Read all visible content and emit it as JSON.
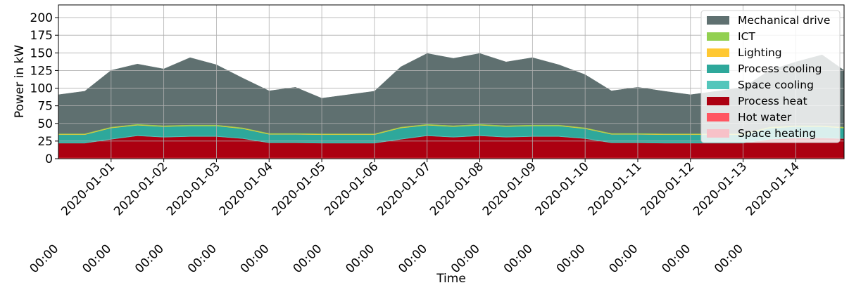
{
  "chart_data": {
    "type": "area",
    "stacked": true,
    "xlabel": "Time",
    "ylabel": "Power in kW",
    "xlim": [
      "2019-12-31T00:00",
      "2020-01-14T22:00"
    ],
    "ylim": [
      0,
      218
    ],
    "grid": true,
    "legend_position": "top-right",
    "y_ticks": [
      0,
      25,
      50,
      75,
      100,
      125,
      150,
      175,
      200
    ],
    "x_ticks": [
      {
        "date": "2020-01-01",
        "time": "00:00"
      },
      {
        "date": "2020-01-02",
        "time": "00:00"
      },
      {
        "date": "2020-01-03",
        "time": "00:00"
      },
      {
        "date": "2020-01-04",
        "time": "00:00"
      },
      {
        "date": "2020-01-05",
        "time": "00:00"
      },
      {
        "date": "2020-01-06",
        "time": "00:00"
      },
      {
        "date": "2020-01-07",
        "time": "00:00"
      },
      {
        "date": "2020-01-08",
        "time": "00:00"
      },
      {
        "date": "2020-01-09",
        "time": "00:00"
      },
      {
        "date": "2020-01-10",
        "time": "00:00"
      },
      {
        "date": "2020-01-11",
        "time": "00:00"
      },
      {
        "date": "2020-01-12",
        "time": "00:00"
      },
      {
        "date": "2020-01-13",
        "time": "00:00"
      },
      {
        "date": "2020-01-14",
        "time": "00:00"
      }
    ],
    "x": [
      "2019-12-31T00:00",
      "2019-12-31T12:00",
      "2020-01-01T00:00",
      "2020-01-01T12:00",
      "2020-01-02T00:00",
      "2020-01-02T12:00",
      "2020-01-03T00:00",
      "2020-01-03T12:00",
      "2020-01-04T00:00",
      "2020-01-04T12:00",
      "2020-01-05T00:00",
      "2020-01-05T12:00",
      "2020-01-06T00:00",
      "2020-01-06T12:00",
      "2020-01-07T00:00",
      "2020-01-07T12:00",
      "2020-01-08T00:00",
      "2020-01-08T12:00",
      "2020-01-09T00:00",
      "2020-01-09T12:00",
      "2020-01-10T00:00",
      "2020-01-10T12:00",
      "2020-01-11T00:00",
      "2020-01-11T12:00",
      "2020-01-12T00:00",
      "2020-01-12T12:00",
      "2020-01-13T00:00",
      "2020-01-13T12:00",
      "2020-01-14T00:00",
      "2020-01-14T12:00",
      "2020-01-14T22:00"
    ],
    "series": [
      {
        "name": "Space heating",
        "color": "#f7c1c8",
        "values": [
          0.5,
          0.5,
          0.5,
          0.5,
          0.5,
          0.5,
          0.5,
          0.5,
          0.5,
          0.5,
          0.5,
          0.5,
          0.5,
          0.5,
          0.5,
          0.5,
          0.5,
          0.5,
          0.5,
          0.5,
          0.5,
          0.5,
          0.5,
          0.5,
          0.5,
          0.5,
          0.5,
          0.5,
          0.5,
          0.5,
          0.5
        ]
      },
      {
        "name": "Hot water",
        "color": "#ff5561",
        "values": [
          1,
          1,
          1,
          1,
          1,
          1,
          1,
          1,
          1,
          1,
          1,
          1,
          1,
          1,
          1,
          1,
          1,
          1,
          1,
          1,
          1,
          1,
          1,
          1,
          1,
          1,
          1,
          1,
          1,
          1,
          1
        ]
      },
      {
        "name": "Process heat",
        "color": "#ac0011",
        "values": [
          20.5,
          20.5,
          26,
          31,
          29,
          30,
          30,
          27,
          21,
          21,
          20.5,
          20.5,
          20.5,
          26,
          31,
          29,
          31,
          29,
          30,
          30,
          27,
          21,
          21,
          20.5,
          20.5,
          20.5,
          20.5,
          26,
          28,
          28,
          27
        ]
      },
      {
        "name": "Space cooling",
        "color": "#53c6bb",
        "values": [
          1,
          1,
          1,
          1,
          1,
          1,
          1,
          1,
          1,
          1,
          1,
          1,
          1,
          1,
          1,
          1,
          1,
          1,
          1,
          1,
          1,
          1,
          1,
          1,
          1,
          1,
          1,
          1,
          1,
          1,
          1
        ]
      },
      {
        "name": "Process cooling",
        "color": "#2ea89b",
        "values": [
          11,
          11,
          15,
          14,
          14,
          14,
          14,
          13,
          11,
          11,
          11,
          11,
          11,
          15,
          14,
          14,
          14,
          14,
          14,
          14,
          13,
          11,
          11,
          11,
          11,
          11,
          11,
          15,
          15,
          15,
          14
        ]
      },
      {
        "name": "Lighting",
        "color": "#ffc832",
        "values": [
          0.7,
          0.7,
          0.7,
          0.7,
          0.7,
          0.7,
          0.7,
          0.7,
          0.7,
          0.7,
          0.7,
          0.7,
          0.7,
          0.7,
          0.7,
          0.7,
          0.7,
          0.7,
          0.7,
          0.7,
          0.7,
          0.7,
          0.7,
          0.7,
          0.7,
          0.7,
          0.7,
          0.7,
          0.7,
          0.7,
          0.7
        ]
      },
      {
        "name": "ICT",
        "color": "#92d050",
        "values": [
          1,
          1,
          1,
          1,
          1,
          1,
          1,
          1,
          1,
          1,
          1,
          1,
          1,
          1,
          1,
          1,
          1,
          1,
          1,
          1,
          1,
          1,
          1,
          1,
          1,
          1,
          1,
          1,
          1,
          1,
          1
        ]
      },
      {
        "name": "Mechanical drive",
        "color": "#5f7070",
        "values": [
          55,
          60,
          80,
          85,
          80,
          95,
          85,
          70,
          60,
          65,
          50,
          55,
          60,
          85,
          100,
          95,
          100,
          90,
          95,
          85,
          75,
          60,
          65,
          60,
          55,
          60,
          65,
          80,
          90,
          100,
          80
        ]
      }
    ]
  }
}
